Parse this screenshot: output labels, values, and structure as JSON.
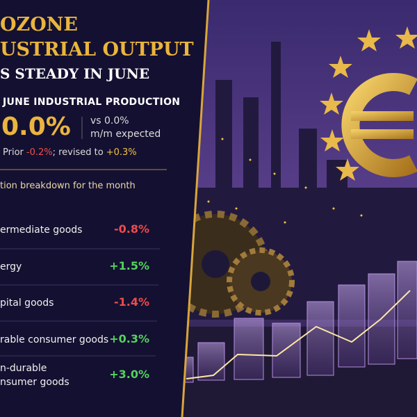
{
  "header": {
    "title_lines": [
      "OZONE",
      "USTRIAL OUTPUT"
    ],
    "subtitle": "S STEADY IN JUNE"
  },
  "headline": {
    "label": "JUNE INDUSTRIAL PRODUCTION",
    "value": "0.0%",
    "expected_lines": [
      "vs 0.0%",
      "m/m expected"
    ],
    "prior_text": "Prior",
    "prior_value": "-0.2%",
    "revised_text": "; revised to",
    "revised_value": "+0.3%"
  },
  "breakdown": {
    "heading": "tion breakdown for the month",
    "rows": [
      {
        "label_lines": [
          "ermediate goods"
        ],
        "value": "-0.8%"
      },
      {
        "label_lines": [
          "ergy"
        ],
        "value": "+1.5%"
      },
      {
        "label_lines": [
          "pital goods"
        ],
        "value": "-1.4%"
      },
      {
        "label_lines": [
          "rable consumer goods"
        ],
        "value": "+0.3%"
      },
      {
        "label_lines": [
          "n-durable",
          "nsumer goods"
        ],
        "value": "+3.0%"
      }
    ]
  }
}
